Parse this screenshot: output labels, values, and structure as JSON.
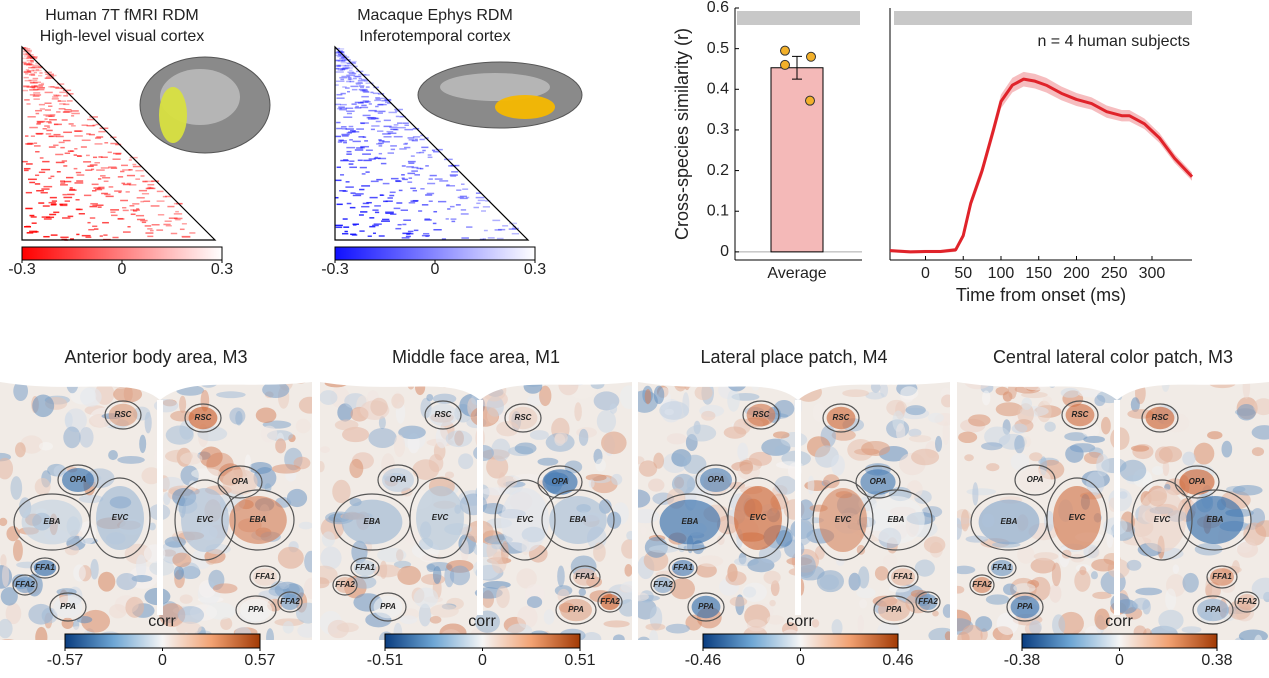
{
  "chart_data": [
    {
      "type": "bar",
      "categories": [
        "Average"
      ],
      "values": [
        0.453
      ],
      "errors": [
        0.028
      ],
      "points": [
        0.495,
        0.48,
        0.46,
        0.372
      ],
      "color": "#f4b9b8",
      "point_color": "#f2b02a",
      "ylabel": "Cross-species similarity (r)",
      "ylim": [
        -0.02,
        0.6
      ],
      "yticks": [
        0,
        0.1,
        0.2,
        0.3,
        0.4,
        0.5,
        0.6
      ]
    },
    {
      "type": "line",
      "xlabel": "Time from onset (ms)",
      "annotation": "n = 4 human subjects",
      "x": [
        -47,
        -20,
        0,
        20,
        40,
        50,
        60,
        75,
        90,
        100,
        115,
        130,
        145,
        160,
        180,
        200,
        220,
        240,
        260,
        270,
        290,
        310,
        330,
        353
      ],
      "series": [
        {
          "color": "#e0232a",
          "values": [
            0.003,
            0.0,
            0.001,
            0.001,
            0.005,
            0.04,
            0.12,
            0.2,
            0.3,
            0.37,
            0.41,
            0.425,
            0.42,
            0.41,
            0.39,
            0.375,
            0.365,
            0.345,
            0.335,
            0.335,
            0.315,
            0.28,
            0.23,
            0.185
          ],
          "error": [
            0.004,
            0.004,
            0.004,
            0.004,
            0.005,
            0.008,
            0.012,
            0.014,
            0.016,
            0.017,
            0.018,
            0.018,
            0.018,
            0.018,
            0.017,
            0.016,
            0.015,
            0.015,
            0.014,
            0.014,
            0.013,
            0.012,
            0.011,
            0.01
          ]
        }
      ],
      "ylim": [
        -0.02,
        0.6
      ],
      "xlim": [
        -47,
        353
      ],
      "xticks": [
        0,
        50,
        100,
        150,
        200,
        250,
        300
      ]
    }
  ],
  "rdm_panels": [
    {
      "title": [
        "Human 7T fMRI RDM",
        "High-level visual cortex"
      ],
      "color": "#ff0000",
      "lim": [
        -0.3,
        0.3
      ],
      "ticks": [
        -0.3,
        0,
        0.3
      ]
    },
    {
      "title": [
        "Macaque Ephys RDM",
        "Inferotemporal cortex"
      ],
      "color": "#1010ff",
      "lim": [
        -0.3,
        0.3
      ],
      "ticks": [
        -0.3,
        0,
        0.3
      ]
    }
  ],
  "brain_maps": [
    {
      "title": "Anterior body area, M3",
      "colorbar_label": "corr",
      "lim": [
        -0.57,
        0.57
      ],
      "ticks": [
        -0.57,
        0,
        0.57
      ]
    },
    {
      "title": "Middle face area, M1",
      "colorbar_label": "corr",
      "lim": [
        -0.51,
        0.51
      ],
      "ticks": [
        -0.51,
        0,
        0.51
      ]
    },
    {
      "title": "Lateral place patch, M4",
      "colorbar_label": "corr",
      "lim": [
        -0.46,
        0.46
      ],
      "ticks": [
        -0.46,
        0,
        0.46
      ]
    },
    {
      "title": "Central lateral color patch, M3",
      "colorbar_label": "corr",
      "lim": [
        -0.38,
        0.38
      ],
      "ticks": [
        -0.38,
        0,
        0.38
      ]
    }
  ],
  "roi_labels": [
    "RSC",
    "OPA",
    "EBA",
    "EVC",
    "FFA1",
    "FFA2",
    "PPA"
  ]
}
